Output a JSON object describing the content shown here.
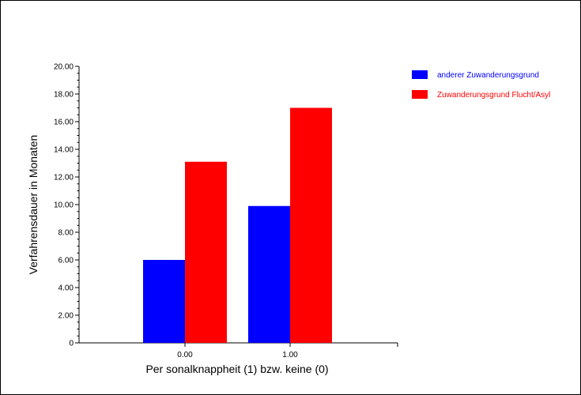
{
  "chart_data": {
    "type": "bar",
    "categories": [
      "0.00",
      "1.00"
    ],
    "series": [
      {
        "name": "anderer Zuwanderungsgrund",
        "color": "#0000ff",
        "values": [
          6.0,
          9.9
        ]
      },
      {
        "name": "Zuwanderungsgrund Flucht/Asyl",
        "color": "#ff0000",
        "values": [
          13.1,
          17.0
        ]
      }
    ],
    "title": "",
    "xlabel": "Per sonalknappheit (1) bzw. keine (0)",
    "ylabel": "Verfahrensdauer in Monaten",
    "ylim": [
      0,
      20
    ],
    "yticks": [
      "0",
      "2.00",
      "4.00",
      "6.00",
      "8.00",
      "10.00",
      "12.00",
      "14.00",
      "16.00",
      "18.00",
      "20.00"
    ],
    "grid": false,
    "legend_position": "top-right"
  }
}
